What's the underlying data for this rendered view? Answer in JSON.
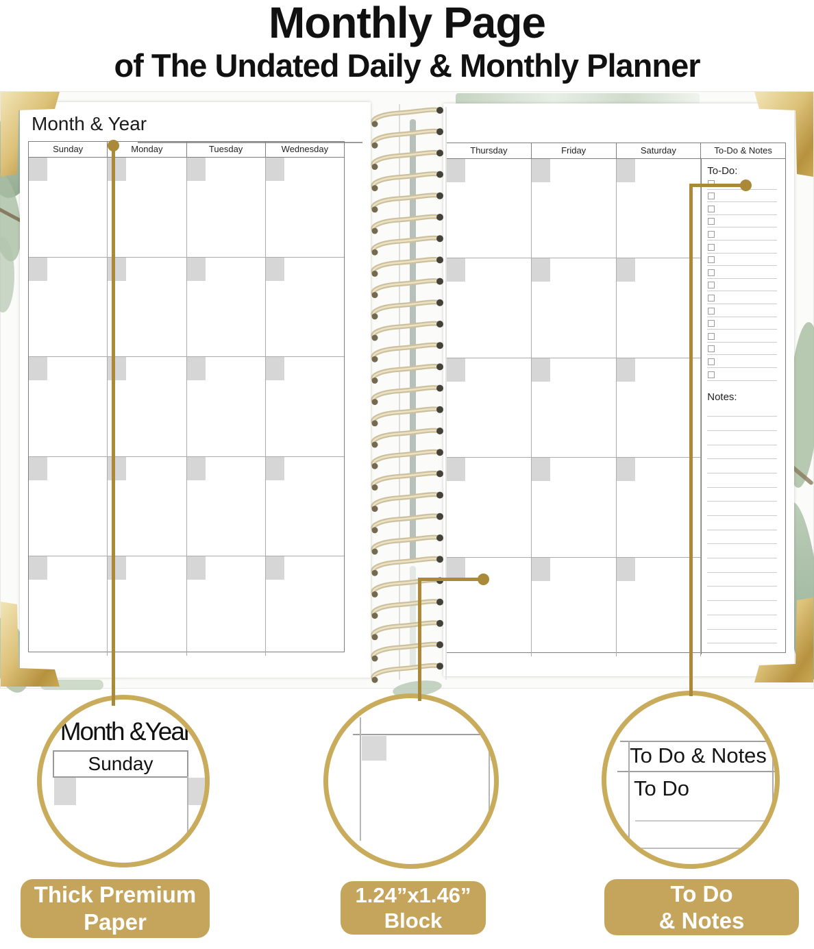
{
  "header": {
    "title": "Monthly Page",
    "subtitle": "of The Undated Daily & Monthly Planner"
  },
  "planner": {
    "month_year_label": "Month & Year",
    "left_day_headers": [
      "Sunday",
      "Monday",
      "Tuesday",
      "Wednesday"
    ],
    "right_day_headers": [
      "Thursday",
      "Friday",
      "Saturday"
    ],
    "todo_notes_header": "To-Do & Notes",
    "todo_label": "To-Do:",
    "notes_label": "Notes:",
    "weeks_per_page": 5,
    "todo_checkbox_count": 16,
    "notes_line_count": 17,
    "coil_loop_count": 27
  },
  "callouts": {
    "left": {
      "zoom_title": "Month &Year",
      "zoom_day": "Sunday",
      "badge": [
        "Thick Premium",
        "Paper"
      ]
    },
    "middle": {
      "badge": [
        "1.24”x1.46”",
        "Block"
      ]
    },
    "right": {
      "zoom_header": "To Do & Notes",
      "zoom_sub": "To Do",
      "badge": [
        "To Do",
        "& Notes"
      ]
    }
  },
  "colors": {
    "gold_badge": "#c5a55c",
    "gold_ring": "#c9ab5c",
    "gold_line": "#aa8a38",
    "gray_block": "#d6d6d6"
  }
}
